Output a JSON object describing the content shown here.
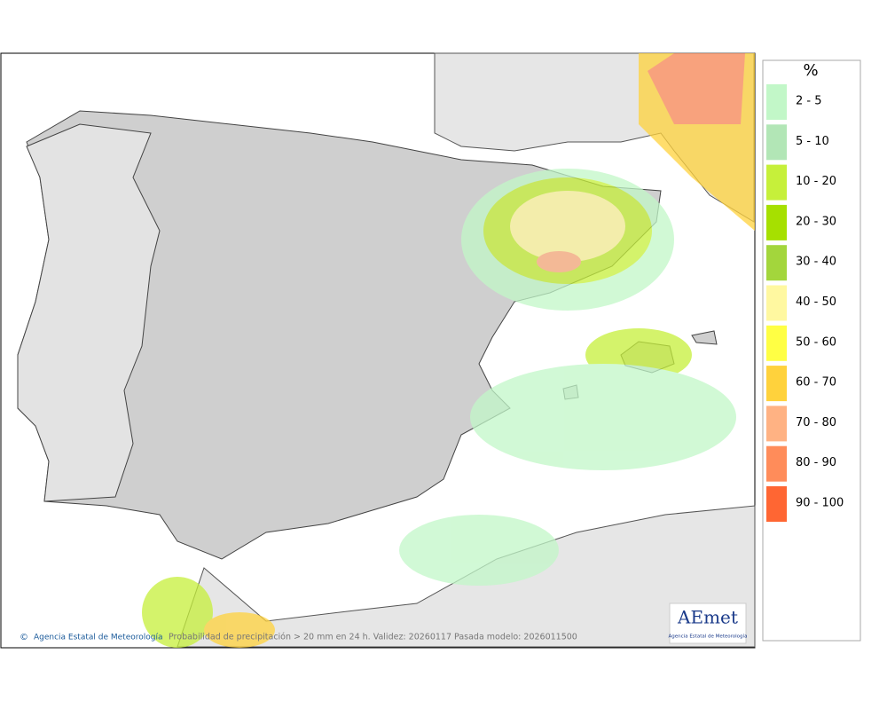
{
  "legend": {
    "title": "%",
    "items": [
      {
        "label": "2 - 5",
        "color": "#c2f7c8"
      },
      {
        "label": "5 - 10",
        "color": "#b2e6b6"
      },
      {
        "label": "10 - 20",
        "color": "#c6f03a"
      },
      {
        "label": "20 - 30",
        "color": "#a6e000"
      },
      {
        "label": "30 - 40",
        "color": "#a3d63c"
      },
      {
        "label": "40 - 50",
        "color": "#fff8a0"
      },
      {
        "label": "50 - 60",
        "color": "#ffff44"
      },
      {
        "label": "60 - 70",
        "color": "#ffd23c"
      },
      {
        "label": "70 - 80",
        "color": "#ffb283"
      },
      {
        "label": "80 - 90",
        "color": "#ff8c5a"
      },
      {
        "label": "90 - 100",
        "color": "#ff6633"
      }
    ]
  },
  "footer": {
    "credit": "Agencia Estatal de Meteorología",
    "caption": "Probabilidad de precipitación > 20 mm en 24 h. Validez: 20260117 Pasada modelo: 2026011500"
  },
  "logo": {
    "name": "AEmet",
    "subtitle": "Agencia Estatal de Meteorología"
  }
}
